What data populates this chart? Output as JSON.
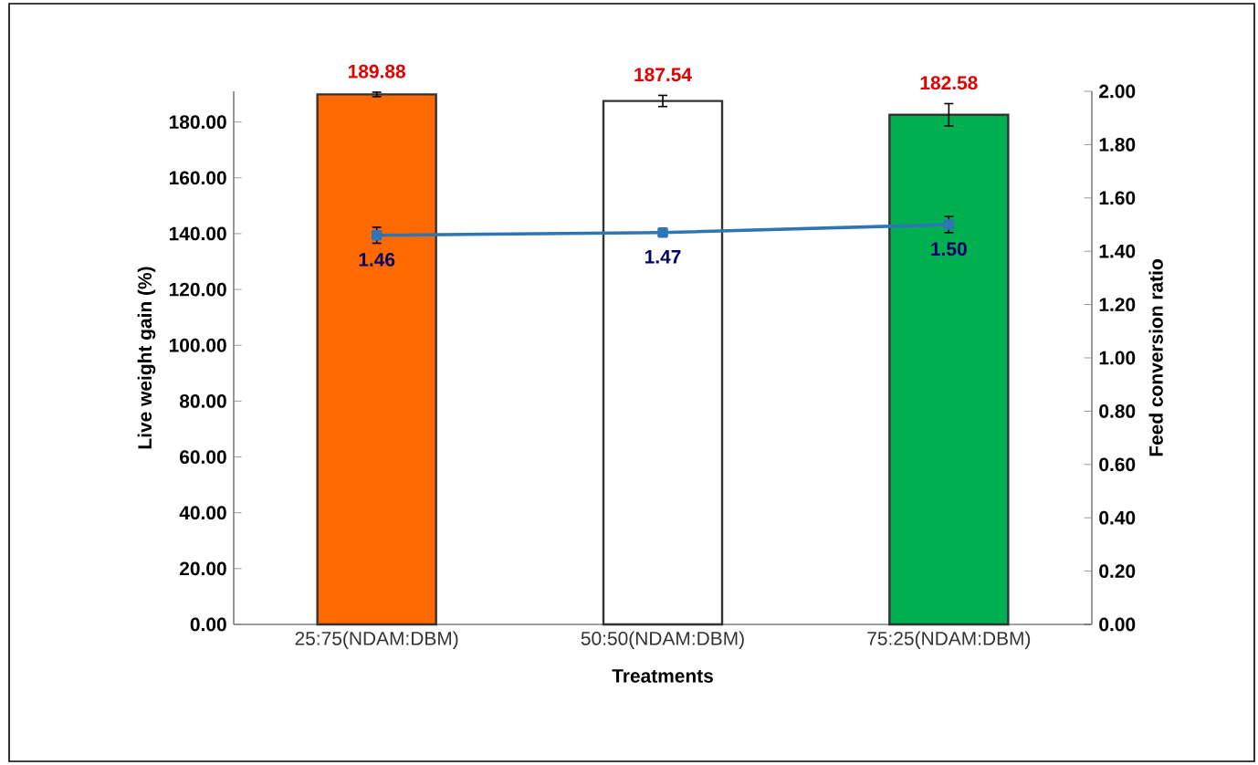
{
  "chart_data": {
    "type": "bar",
    "categories": [
      "25:75(NDAM:DBM)",
      "50:50(NDAM:DBM)",
      "75:25(NDAM:DBM)"
    ],
    "xlabel": "Treatments",
    "ylabel": "Live weight gain (%)",
    "y2label": "Feed conversion ratio",
    "ylim": [
      0,
      191
    ],
    "yticks": [
      {
        "value": 0,
        "label": "0.00"
      },
      {
        "value": 20,
        "label": "20.00"
      },
      {
        "value": 40,
        "label": "40.00"
      },
      {
        "value": 60,
        "label": "60.00"
      },
      {
        "value": 80,
        "label": "80.00"
      },
      {
        "value": 100,
        "label": "100.00"
      },
      {
        "value": 120,
        "label": "120.00"
      },
      {
        "value": 140,
        "label": "140.00"
      },
      {
        "value": 160,
        "label": "160.00"
      },
      {
        "value": 180,
        "label": "180.00"
      }
    ],
    "y2lim": [
      0,
      2
    ],
    "y2ticks": [
      {
        "value": 0,
        "label": "0.00"
      },
      {
        "value": 0.2,
        "label": "0.20"
      },
      {
        "value": 0.4,
        "label": "0.40"
      },
      {
        "value": 0.6,
        "label": "0.60"
      },
      {
        "value": 0.8,
        "label": "0.80"
      },
      {
        "value": 1.0,
        "label": "1.00"
      },
      {
        "value": 1.2,
        "label": "1.20"
      },
      {
        "value": 1.4,
        "label": "1.40"
      },
      {
        "value": 1.6,
        "label": "1.60"
      },
      {
        "value": 1.8,
        "label": "1.80"
      },
      {
        "value": 2.0,
        "label": "2.00"
      }
    ],
    "marker": "square",
    "grid": false,
    "series": [
      {
        "colors": [
          "#ff6a00",
          "#ffffff",
          "#00b050"
        ],
        "values": [
          189.88,
          187.54,
          182.58
        ],
        "errors": [
          0.8,
          2,
          4
        ],
        "value_labels": [
          "189.88",
          "187.54",
          "182.58"
        ]
      },
      {
        "type": "line",
        "axis": "y2",
        "color": "#2e75b6",
        "values": [
          1.46,
          1.47,
          1.5
        ],
        "errors": [
          0.03,
          0.01,
          0.03
        ],
        "value_labels": [
          "1.46",
          "1.47",
          "1.50"
        ]
      }
    ]
  }
}
